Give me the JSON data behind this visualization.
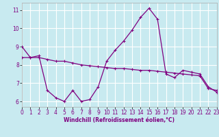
{
  "xlabel": "Windchill (Refroidissement éolien,°C)",
  "x_hours": [
    0,
    1,
    2,
    3,
    4,
    5,
    6,
    7,
    8,
    9,
    10,
    11,
    12,
    13,
    14,
    15,
    16,
    17,
    18,
    19,
    20,
    21,
    22,
    23
  ],
  "y_windchill": [
    9.0,
    8.4,
    8.5,
    6.6,
    6.2,
    6.0,
    6.6,
    6.0,
    6.1,
    6.8,
    8.2,
    8.8,
    9.3,
    9.9,
    10.6,
    11.1,
    10.5,
    7.5,
    7.3,
    7.7,
    7.6,
    7.5,
    6.8,
    6.5
  ],
  "y_temp": [
    8.4,
    8.4,
    8.4,
    8.3,
    8.2,
    8.2,
    8.1,
    8.0,
    7.95,
    7.9,
    7.85,
    7.8,
    7.8,
    7.75,
    7.7,
    7.7,
    7.65,
    7.6,
    7.55,
    7.5,
    7.45,
    7.4,
    6.7,
    6.6
  ],
  "line_color": "#800080",
  "bg_color": "#c8eaf0",
  "grid_color": "#ffffff",
  "xlim": [
    0,
    23
  ],
  "ylim": [
    5.7,
    11.4
  ],
  "yticks": [
    6,
    7,
    8,
    9,
    10,
    11
  ],
  "xticks": [
    0,
    1,
    2,
    3,
    4,
    5,
    6,
    7,
    8,
    9,
    10,
    11,
    12,
    13,
    14,
    15,
    16,
    17,
    18,
    19,
    20,
    21,
    22,
    23
  ],
  "tick_fontsize": 5.5,
  "xlabel_fontsize": 5.5
}
